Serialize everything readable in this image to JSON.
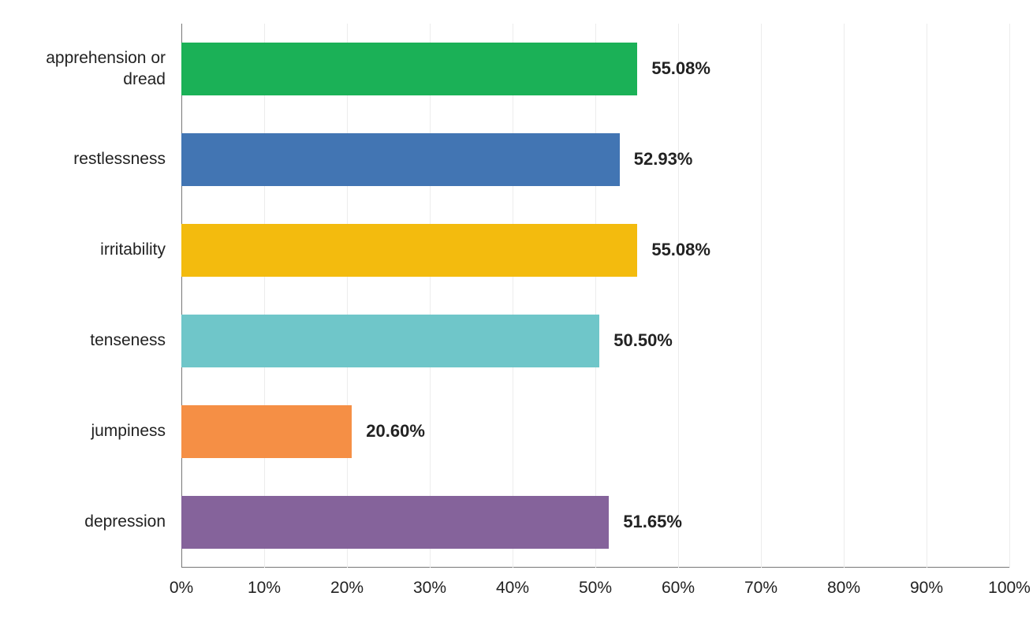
{
  "chart": {
    "type": "bar-horizontal",
    "background_color": "#ffffff",
    "grid_color": "#ececec",
    "axis_color": "#777777",
    "text_color": "#222222",
    "label_fontsize": 21,
    "value_fontsize": 22,
    "value_fontweight": 600,
    "xlim": [
      0,
      100
    ],
    "xtick_step": 10,
    "xticks": [
      0,
      10,
      20,
      30,
      40,
      50,
      60,
      70,
      80,
      90,
      100
    ],
    "xtick_labels": [
      "0%",
      "10%",
      "20%",
      "30%",
      "40%",
      "50%",
      "60%",
      "70%",
      "80%",
      "90%",
      "100%"
    ],
    "value_suffix": "%",
    "bar_height_ratio": 0.58,
    "categories": [
      {
        "label": "apprehension or dread",
        "value": 55.08,
        "value_label": "55.08%",
        "color": "#1bb157"
      },
      {
        "label": "restlessness",
        "value": 52.93,
        "value_label": "52.93%",
        "color": "#4275b3"
      },
      {
        "label": "irritability",
        "value": 55.08,
        "value_label": "55.08%",
        "color": "#f3bb0e"
      },
      {
        "label": "tenseness",
        "value": 50.5,
        "value_label": "50.50%",
        "color": "#6fc6c9"
      },
      {
        "label": "jumpiness",
        "value": 20.6,
        "value_label": "20.60%",
        "color": "#f58f45"
      },
      {
        "label": "depression",
        "value": 51.65,
        "value_label": "51.65%",
        "color": "#85639b"
      }
    ]
  }
}
